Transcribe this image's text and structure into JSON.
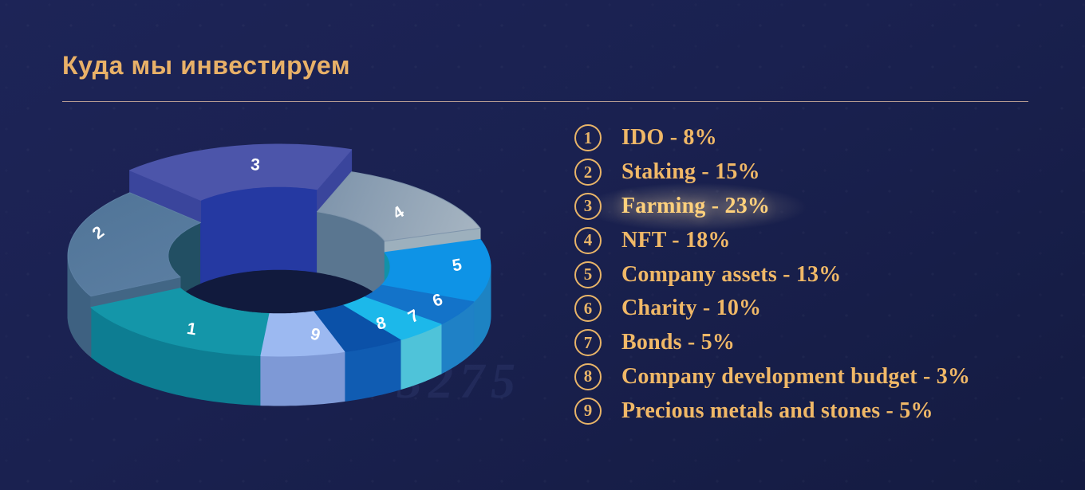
{
  "page": {
    "watermark": "3275",
    "background_color": "#1a2150",
    "accent_gold": "#e9b168"
  },
  "header": {
    "title": "Куда мы инвестируем"
  },
  "chart_data": {
    "type": "pie",
    "variant": "3d-donut",
    "title": "Куда мы инвестируем",
    "unit": "%",
    "legend_position": "right",
    "highlighted_segment": 3,
    "total": 100,
    "segments": [
      {
        "n": 1,
        "label": "IDO",
        "value": 8,
        "color_top": "#1496a9",
        "color_side": "#0d7d92",
        "start_deg": 207,
        "end_deg": 265,
        "lift": 0
      },
      {
        "n": 2,
        "label": "Staking",
        "value": 15,
        "color_top": "#5d80a4",
        "color_side": "#3e6181",
        "color_inner": "#224f63",
        "color_cut": "#426685",
        "start_deg": 135,
        "end_deg": 207,
        "lift": 14
      },
      {
        "n": 3,
        "label": "Farming",
        "value": 23,
        "color_top": "#4c55aa",
        "color_side": "#3a459c",
        "color_inner": "#2539a2",
        "color_cut": "#3a459c",
        "start_deg": 70,
        "end_deg": 135,
        "lift": 42,
        "raised": true
      },
      {
        "n": 4,
        "label": "NFT",
        "value": 18,
        "color_top": "#7e94ab",
        "color_top2": "#aebbc6",
        "color_side": "#9aabb9",
        "color_inner": "#5a7690",
        "color_cut": "#9db0bd",
        "start_deg": 18,
        "end_deg": 70,
        "lift": 14
      },
      {
        "n": 5,
        "label": "Company assets",
        "value": 13,
        "color_top": "#0e93e6",
        "color_side": "#1d83c3",
        "color_inner": "#1391a8",
        "start_deg": 337,
        "end_deg": 378,
        "lift": 0
      },
      {
        "n": 6,
        "label": "Charity",
        "value": 10,
        "color_top": "#1373c9",
        "color_side": "#1f81c6",
        "start_deg": 320,
        "end_deg": 337,
        "lift": 0
      },
      {
        "n": 7,
        "label": "Bonds",
        "value": 5,
        "color_top": "#1cb8ea",
        "color_side": "#4fc3d9",
        "start_deg": 305,
        "end_deg": 320,
        "lift": 0
      },
      {
        "n": 8,
        "label": "Company development budget",
        "value": 3,
        "color_top": "#0b51a8",
        "color_side": "#105cb2",
        "start_deg": 288,
        "end_deg": 305,
        "lift": 0
      },
      {
        "n": 9,
        "label": "Precious metals and stones",
        "value": 5,
        "color_top": "#9cb9f1",
        "color_side": "#7e99d6",
        "start_deg": 265,
        "end_deg": 288,
        "lift": 0
      }
    ],
    "floor_color": "#111a3d",
    "number_label_color": "#ffffff",
    "legend_separator": " - "
  }
}
